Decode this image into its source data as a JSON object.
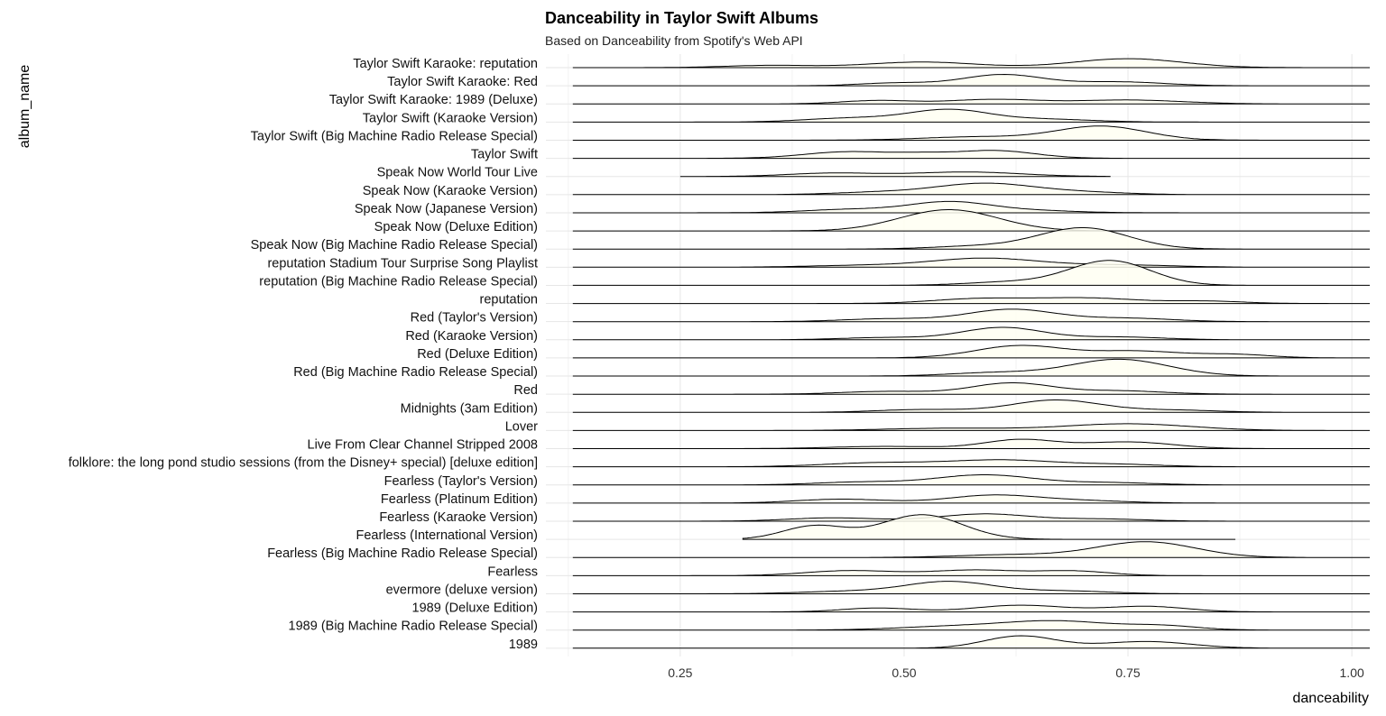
{
  "chart_data": {
    "type": "ridgeline",
    "title": "Danceability in Taylor Swift Albums",
    "subtitle": "Based on Danceability from Spotify's Web API",
    "xlabel": "danceability",
    "ylabel": "album_name",
    "xlim": [
      0.1,
      1.02
    ],
    "x_ticks": [
      0.25,
      0.5,
      0.75,
      1.0
    ],
    "x_tick_labels": [
      "0.25",
      "0.50",
      "0.75",
      "1.00"
    ],
    "fill_color": "#fffff0",
    "line_color": "#000000",
    "grid": true,
    "series": [
      {
        "name": "Taylor Swift Karaoke: reputation",
        "range": [
          0.13,
          1.02
        ],
        "peaks": [
          [
            0.35,
            0.05,
            0.04
          ],
          [
            0.52,
            0.06,
            0.1
          ],
          [
            0.75,
            0.06,
            0.16
          ]
        ]
      },
      {
        "name": "Taylor Swift Karaoke: Red",
        "range": [
          0.13,
          1.02
        ],
        "peaks": [
          [
            0.49,
            0.04,
            0.05
          ],
          [
            0.61,
            0.045,
            0.2
          ],
          [
            0.74,
            0.05,
            0.07
          ]
        ]
      },
      {
        "name": "Taylor Swift Karaoke: 1989 (Deluxe)",
        "range": [
          0.13,
          1.02
        ],
        "peaks": [
          [
            0.47,
            0.04,
            0.06
          ],
          [
            0.6,
            0.05,
            0.08
          ],
          [
            0.75,
            0.06,
            0.07
          ]
        ]
      },
      {
        "name": "Taylor Swift (Karaoke Version)",
        "range": [
          0.13,
          1.02
        ],
        "peaks": [
          [
            0.44,
            0.05,
            0.07
          ],
          [
            0.55,
            0.045,
            0.22
          ],
          [
            0.66,
            0.05,
            0.05
          ]
        ]
      },
      {
        "name": "Taylor Swift (Big Machine Radio Release Special)",
        "range": [
          0.13,
          1.02
        ],
        "peaks": [
          [
            0.58,
            0.06,
            0.06
          ],
          [
            0.72,
            0.05,
            0.25
          ]
        ]
      },
      {
        "name": "Taylor Swift",
        "range": [
          0.13,
          1.02
        ],
        "peaks": [
          [
            0.44,
            0.05,
            0.12
          ],
          [
            0.6,
            0.045,
            0.14
          ],
          [
            0.52,
            0.03,
            0.05
          ]
        ]
      },
      {
        "name": "Speak Now World Tour Live",
        "range": [
          0.25,
          0.73
        ],
        "peaks": [
          [
            0.42,
            0.05,
            0.06
          ],
          [
            0.57,
            0.06,
            0.08
          ]
        ]
      },
      {
        "name": "Speak Now (Karaoke Version)",
        "range": [
          0.13,
          1.02
        ],
        "peaks": [
          [
            0.47,
            0.05,
            0.04
          ],
          [
            0.59,
            0.055,
            0.2
          ],
          [
            0.7,
            0.05,
            0.04
          ]
        ]
      },
      {
        "name": "Speak Now (Japanese Version)",
        "range": [
          0.13,
          1.02
        ],
        "peaks": [
          [
            0.44,
            0.05,
            0.06
          ],
          [
            0.55,
            0.045,
            0.19
          ],
          [
            0.64,
            0.05,
            0.04
          ]
        ]
      },
      {
        "name": "Speak Now (Deluxe Edition)",
        "range": [
          0.13,
          1.02
        ],
        "peaks": [
          [
            0.55,
            0.055,
            0.38
          ]
        ]
      },
      {
        "name": "Speak Now (Big Machine Radio Release Special)",
        "range": [
          0.13,
          1.02
        ],
        "peaks": [
          [
            0.58,
            0.05,
            0.05
          ],
          [
            0.7,
            0.05,
            0.38
          ]
        ]
      },
      {
        "name": "reputation Stadium Tour Surprise Song Playlist",
        "range": [
          0.13,
          1.02
        ],
        "peaks": [
          [
            0.45,
            0.06,
            0.03
          ],
          [
            0.59,
            0.06,
            0.16
          ],
          [
            0.74,
            0.06,
            0.04
          ]
        ]
      },
      {
        "name": "reputation (Big Machine Radio Release Special)",
        "range": [
          0.13,
          1.02
        ],
        "peaks": [
          [
            0.62,
            0.05,
            0.06
          ],
          [
            0.73,
            0.045,
            0.44
          ]
        ]
      },
      {
        "name": "reputation",
        "range": [
          0.13,
          1.02
        ],
        "peaks": [
          [
            0.58,
            0.05,
            0.08
          ],
          [
            0.7,
            0.06,
            0.1
          ],
          [
            0.84,
            0.04,
            0.04
          ]
        ]
      },
      {
        "name": "Red (Taylor's Version)",
        "range": [
          0.13,
          1.02
        ],
        "peaks": [
          [
            0.48,
            0.05,
            0.05
          ],
          [
            0.62,
            0.05,
            0.22
          ],
          [
            0.75,
            0.05,
            0.06
          ]
        ]
      },
      {
        "name": "Red (Karaoke Version)",
        "range": [
          0.13,
          1.02
        ],
        "peaks": [
          [
            0.48,
            0.05,
            0.04
          ],
          [
            0.61,
            0.045,
            0.22
          ],
          [
            0.74,
            0.05,
            0.05
          ]
        ]
      },
      {
        "name": "Red (Deluxe Edition)",
        "range": [
          0.13,
          1.02
        ],
        "peaks": [
          [
            0.63,
            0.05,
            0.22
          ],
          [
            0.76,
            0.05,
            0.12
          ],
          [
            0.87,
            0.04,
            0.06
          ]
        ]
      },
      {
        "name": "Red (Big Machine Radio Release Special)",
        "range": [
          0.13,
          1.02
        ],
        "peaks": [
          [
            0.6,
            0.05,
            0.06
          ],
          [
            0.74,
            0.055,
            0.3
          ]
        ]
      },
      {
        "name": "Red",
        "range": [
          0.13,
          1.02
        ],
        "peaks": [
          [
            0.48,
            0.05,
            0.05
          ],
          [
            0.62,
            0.045,
            0.2
          ],
          [
            0.74,
            0.05,
            0.06
          ]
        ]
      },
      {
        "name": "Midnights (3am Edition)",
        "range": [
          0.13,
          1.02
        ],
        "peaks": [
          [
            0.52,
            0.05,
            0.05
          ],
          [
            0.67,
            0.05,
            0.22
          ],
          [
            0.8,
            0.05,
            0.04
          ]
        ]
      },
      {
        "name": "Lover",
        "range": [
          0.13,
          1.02
        ],
        "peaks": [
          [
            0.55,
            0.07,
            0.04
          ],
          [
            0.75,
            0.07,
            0.12
          ]
        ]
      },
      {
        "name": "Live From Clear Channel Stripped 2008",
        "range": [
          0.13,
          1.02
        ],
        "peaks": [
          [
            0.48,
            0.06,
            0.04
          ],
          [
            0.63,
            0.04,
            0.16
          ],
          [
            0.75,
            0.05,
            0.12
          ]
        ]
      },
      {
        "name": "folklore: the long pond studio sessions (from the Disney+ special) [deluxe edition]",
        "range": [
          0.13,
          1.02
        ],
        "peaks": [
          [
            0.47,
            0.06,
            0.07
          ],
          [
            0.61,
            0.06,
            0.12
          ],
          [
            0.74,
            0.05,
            0.04
          ]
        ]
      },
      {
        "name": "Fearless (Taylor's Version)",
        "range": [
          0.13,
          1.02
        ],
        "peaks": [
          [
            0.45,
            0.05,
            0.05
          ],
          [
            0.59,
            0.055,
            0.18
          ],
          [
            0.73,
            0.05,
            0.04
          ]
        ]
      },
      {
        "name": "Fearless (Platinum Edition)",
        "range": [
          0.13,
          1.02
        ],
        "peaks": [
          [
            0.43,
            0.05,
            0.07
          ],
          [
            0.6,
            0.05,
            0.14
          ],
          [
            0.7,
            0.05,
            0.04
          ]
        ]
      },
      {
        "name": "Fearless (Karaoke Version)",
        "range": [
          0.13,
          1.02
        ],
        "peaks": [
          [
            0.42,
            0.05,
            0.06
          ],
          [
            0.59,
            0.05,
            0.13
          ],
          [
            0.72,
            0.05,
            0.04
          ]
        ]
      },
      {
        "name": "Fearless (International Version)",
        "range": [
          0.32,
          0.87
        ],
        "peaks": [
          [
            0.4,
            0.035,
            0.24
          ],
          [
            0.52,
            0.045,
            0.44
          ]
        ]
      },
      {
        "name": "Fearless (Big Machine Radio Release Special)",
        "range": [
          0.13,
          1.02
        ],
        "peaks": [
          [
            0.62,
            0.06,
            0.05
          ],
          [
            0.77,
            0.055,
            0.28
          ]
        ]
      },
      {
        "name": "Fearless",
        "range": [
          0.13,
          1.02
        ],
        "peaks": [
          [
            0.44,
            0.05,
            0.09
          ],
          [
            0.58,
            0.05,
            0.1
          ],
          [
            0.69,
            0.04,
            0.08
          ]
        ]
      },
      {
        "name": "evermore (deluxe version)",
        "range": [
          0.13,
          1.02
        ],
        "peaks": [
          [
            0.43,
            0.05,
            0.04
          ],
          [
            0.55,
            0.05,
            0.22
          ],
          [
            0.68,
            0.05,
            0.05
          ]
        ]
      },
      {
        "name": "1989 (Deluxe Edition)",
        "range": [
          0.13,
          1.02
        ],
        "peaks": [
          [
            0.47,
            0.04,
            0.07
          ],
          [
            0.63,
            0.05,
            0.12
          ],
          [
            0.77,
            0.045,
            0.1
          ]
        ]
      },
      {
        "name": "1989 (Big Machine Radio Release Special)",
        "range": [
          0.13,
          1.02
        ],
        "peaks": [
          [
            0.55,
            0.06,
            0.06
          ],
          [
            0.67,
            0.06,
            0.16
          ],
          [
            0.79,
            0.04,
            0.07
          ]
        ]
      },
      {
        "name": "1989",
        "range": [
          0.13,
          1.02
        ],
        "peaks": [
          [
            0.63,
            0.04,
            0.22
          ],
          [
            0.77,
            0.05,
            0.12
          ]
        ]
      }
    ]
  }
}
